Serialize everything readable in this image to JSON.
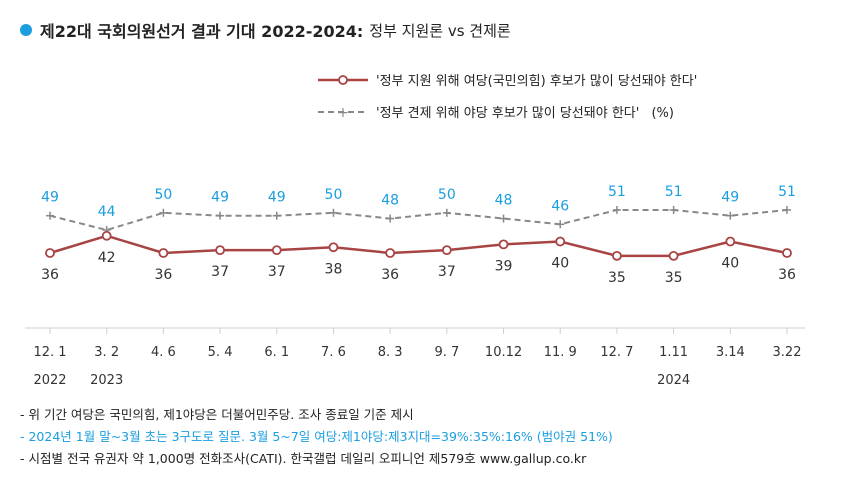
{
  "title": "제22대 국회의원선거 결과 기대 2022-2024:",
  "title_suffix": "정부 지원론 vs 견제론",
  "colors": {
    "series1": "#a84444",
    "series2": "#888888",
    "series2_label": "#1a9ee0",
    "title_dot": "#1a9ee0"
  },
  "notes": [
    "- 위 기간 여당은 국민의힘, 제1야당은 더불어민주당. 조사 종료일 기준 제시",
    "- 2024년 1월 말~3월 초는 3구도로 질문. 3월 5~7일 여당:제1야당:제3지대=39%:35%:16% (범야권 51%)",
    "- 시점별 전국 유권자 약 1,000명 전화조사(CATI). 한국갤럽 데일리 오피니언 제579호 www.gallup.co.kr"
  ],
  "chart_data": {
    "type": "line",
    "categories": [
      "12. 1",
      "3. 2",
      "4. 6",
      "5. 4",
      "6. 1",
      "7. 6",
      "8. 3",
      "9. 7",
      "10.12",
      "11. 9",
      "12. 7",
      "1.11",
      "3.14",
      "3.22"
    ],
    "year_labels": [
      {
        "index": 0,
        "label": "2022"
      },
      {
        "index": 1,
        "label": "2023"
      },
      {
        "index": 11,
        "label": "2024"
      }
    ],
    "series": [
      {
        "name": "'정부 지원 위해 여당(국민의힘) 후보가 많이 당선돼야 한다'",
        "values": [
          36,
          42,
          36,
          37,
          37,
          38,
          36,
          37,
          39,
          40,
          35,
          35,
          40,
          36
        ],
        "style": "solid",
        "marker": "circle"
      },
      {
        "name": "'정부 견제 위해 야당 후보가 많이 당선돼야 한다'",
        "values": [
          49,
          44,
          50,
          49,
          49,
          50,
          48,
          50,
          48,
          46,
          51,
          51,
          49,
          51
        ],
        "style": "dashed",
        "marker": "plus"
      }
    ],
    "unit_label": "(%)",
    "ylim": [
      20,
      70
    ],
    "grid": false,
    "legend_position": "top-right"
  }
}
